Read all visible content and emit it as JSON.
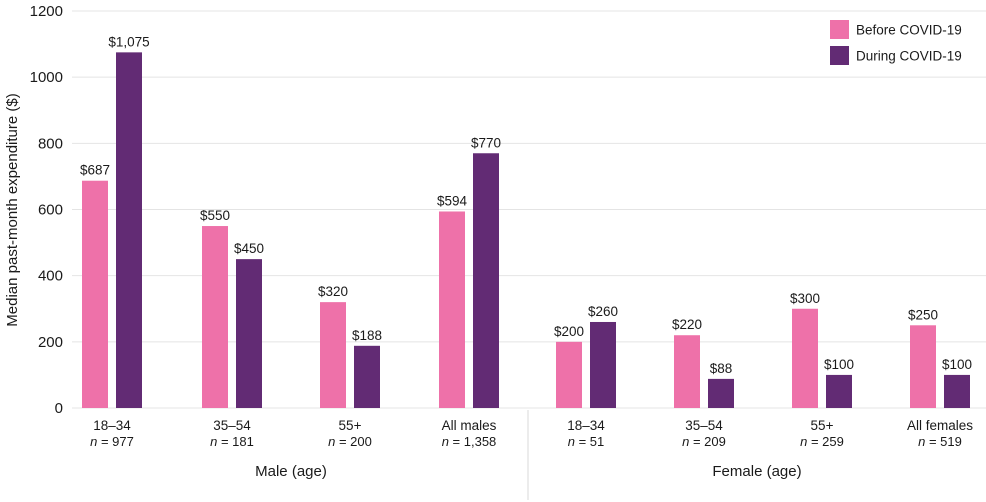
{
  "chart_data": {
    "type": "bar",
    "ylabel": "Median past-month expenditure ($)",
    "ylim": [
      0,
      1200
    ],
    "yticks": [
      "0",
      "200",
      "400",
      "600",
      "800",
      "1000",
      "1200"
    ],
    "legend_position": "top-right",
    "grid": true,
    "categories": [
      {
        "label": "18–34",
        "n": "= 977",
        "group": "male"
      },
      {
        "label": "35–54",
        "n": "= 181",
        "group": "male"
      },
      {
        "label": "55+",
        "n": "= 200",
        "group": "male"
      },
      {
        "label": "All males",
        "n": "= 1,358",
        "group": "male"
      },
      {
        "label": "18–34",
        "n": "= 51",
        "group": "female"
      },
      {
        "label": "35–54",
        "n": "= 209",
        "group": "female"
      },
      {
        "label": "55+",
        "n": "= 259",
        "group": "female"
      },
      {
        "label": "All females",
        "n": "= 519",
        "group": "female"
      }
    ],
    "n_prefix": "n",
    "groups": [
      {
        "key": "male",
        "label": "Male (age)"
      },
      {
        "key": "female",
        "label": "Female (age)"
      }
    ],
    "series": [
      {
        "name": "Before COVID-19",
        "color": "#ee71a9",
        "values": [
          687,
          550,
          320,
          594,
          200,
          220,
          300,
          250
        ],
        "labels": [
          "$687",
          "$550",
          "$320",
          "$594",
          "$200",
          "$220",
          "$300",
          "$250"
        ]
      },
      {
        "name": "During COVID-19",
        "color": "#622b74",
        "values": [
          1075,
          450,
          188,
          770,
          260,
          88,
          100,
          100
        ],
        "labels": [
          "$1,075",
          "$450",
          "$188",
          "$770",
          "$260",
          "$88",
          "$100",
          "$100"
        ]
      }
    ]
  }
}
